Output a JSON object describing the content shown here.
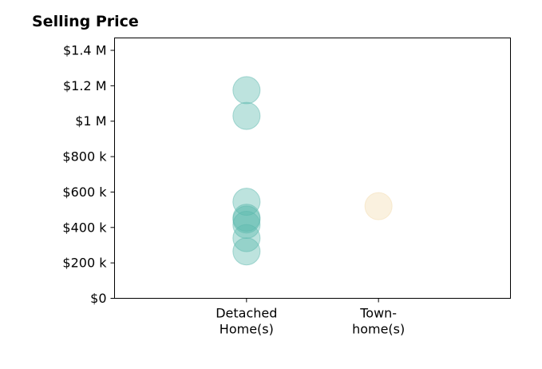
{
  "chart_data": {
    "type": "scatter",
    "title": "Selling Price",
    "xlabel": "",
    "ylabel": "",
    "categories": [
      [
        "Detached",
        "Home(s)"
      ],
      [
        "Town-",
        "home(s)"
      ]
    ],
    "x_range": [
      -1,
      2
    ],
    "ylim": [
      0,
      1470000
    ],
    "y_ticks": [
      0,
      200000,
      400000,
      600000,
      800000,
      1000000,
      1200000,
      1400000
    ],
    "y_tick_labels": [
      "$0",
      "$200 k",
      "$400 k",
      "$600 k",
      "$800 k",
      "$1 M",
      "$1.2 M",
      "$1.4 M"
    ],
    "grid": false,
    "series": [
      {
        "category_index": 0,
        "color": "#5bb8ad",
        "values": [
          1175000,
          1030000,
          545000,
          455000,
          445000,
          415000,
          340000,
          265000
        ]
      },
      {
        "category_index": 1,
        "color": "#f3dcae",
        "values": [
          520000
        ]
      }
    ]
  }
}
